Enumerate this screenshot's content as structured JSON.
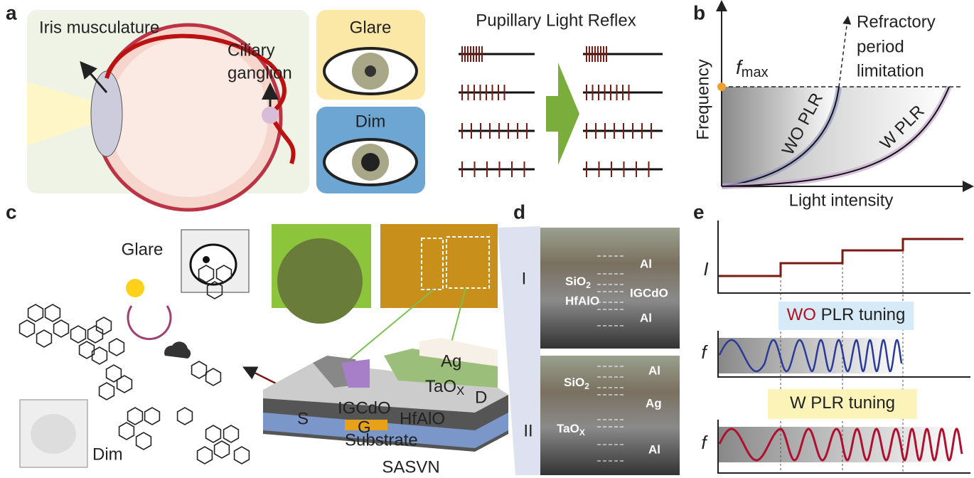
{
  "panel_labels": [
    "a",
    "b",
    "c",
    "d",
    "e"
  ],
  "panel_a": {
    "iris_label": "Iris musculature",
    "ganglion_label": [
      "Ciliary",
      "ganglion"
    ],
    "glare": "Glare",
    "dim": "Dim",
    "plr_title": "Pupillary Light Reflex"
  },
  "panel_b": {
    "annotation": [
      "Refractory",
      "period",
      "limitation"
    ],
    "fmax": {
      "symbol": "f",
      "subscript": "max"
    },
    "y_label": "Frequency",
    "x_label": "Light intensity",
    "curves": [
      "WO PLR",
      "W PLR"
    ]
  },
  "panel_c": {
    "glare": "Glare",
    "dim": "Dim",
    "source": "S",
    "channel": "IGCdO",
    "dielectric": "HfAlO",
    "gate": "G",
    "substrate": "Substrate",
    "electrode": "Ag",
    "switch_layer": {
      "base": "TaO",
      "subscript": "X"
    },
    "drain": "D",
    "device_name": "SASVN"
  },
  "panel_d": {
    "I": {
      "label": "I",
      "layers": [
        "Al",
        {
          "base": "SiO",
          "subscript": "2"
        },
        "IGCdO",
        "HfAlO",
        "Al"
      ]
    },
    "II": {
      "label": "II",
      "layers": [
        "Al",
        {
          "base": "SiO",
          "subscript": "2"
        },
        "Ag",
        {
          "base": "TaO",
          "subscript": "X"
        },
        "Al"
      ]
    }
  },
  "panel_e": {
    "intensity_label": "I",
    "frequency_label": "f",
    "wo_box": {
      "highlight": "WO",
      "rest": "PLR tuning"
    },
    "w_box": {
      "highlight": "W",
      "rest": "PLR tuning"
    }
  }
}
